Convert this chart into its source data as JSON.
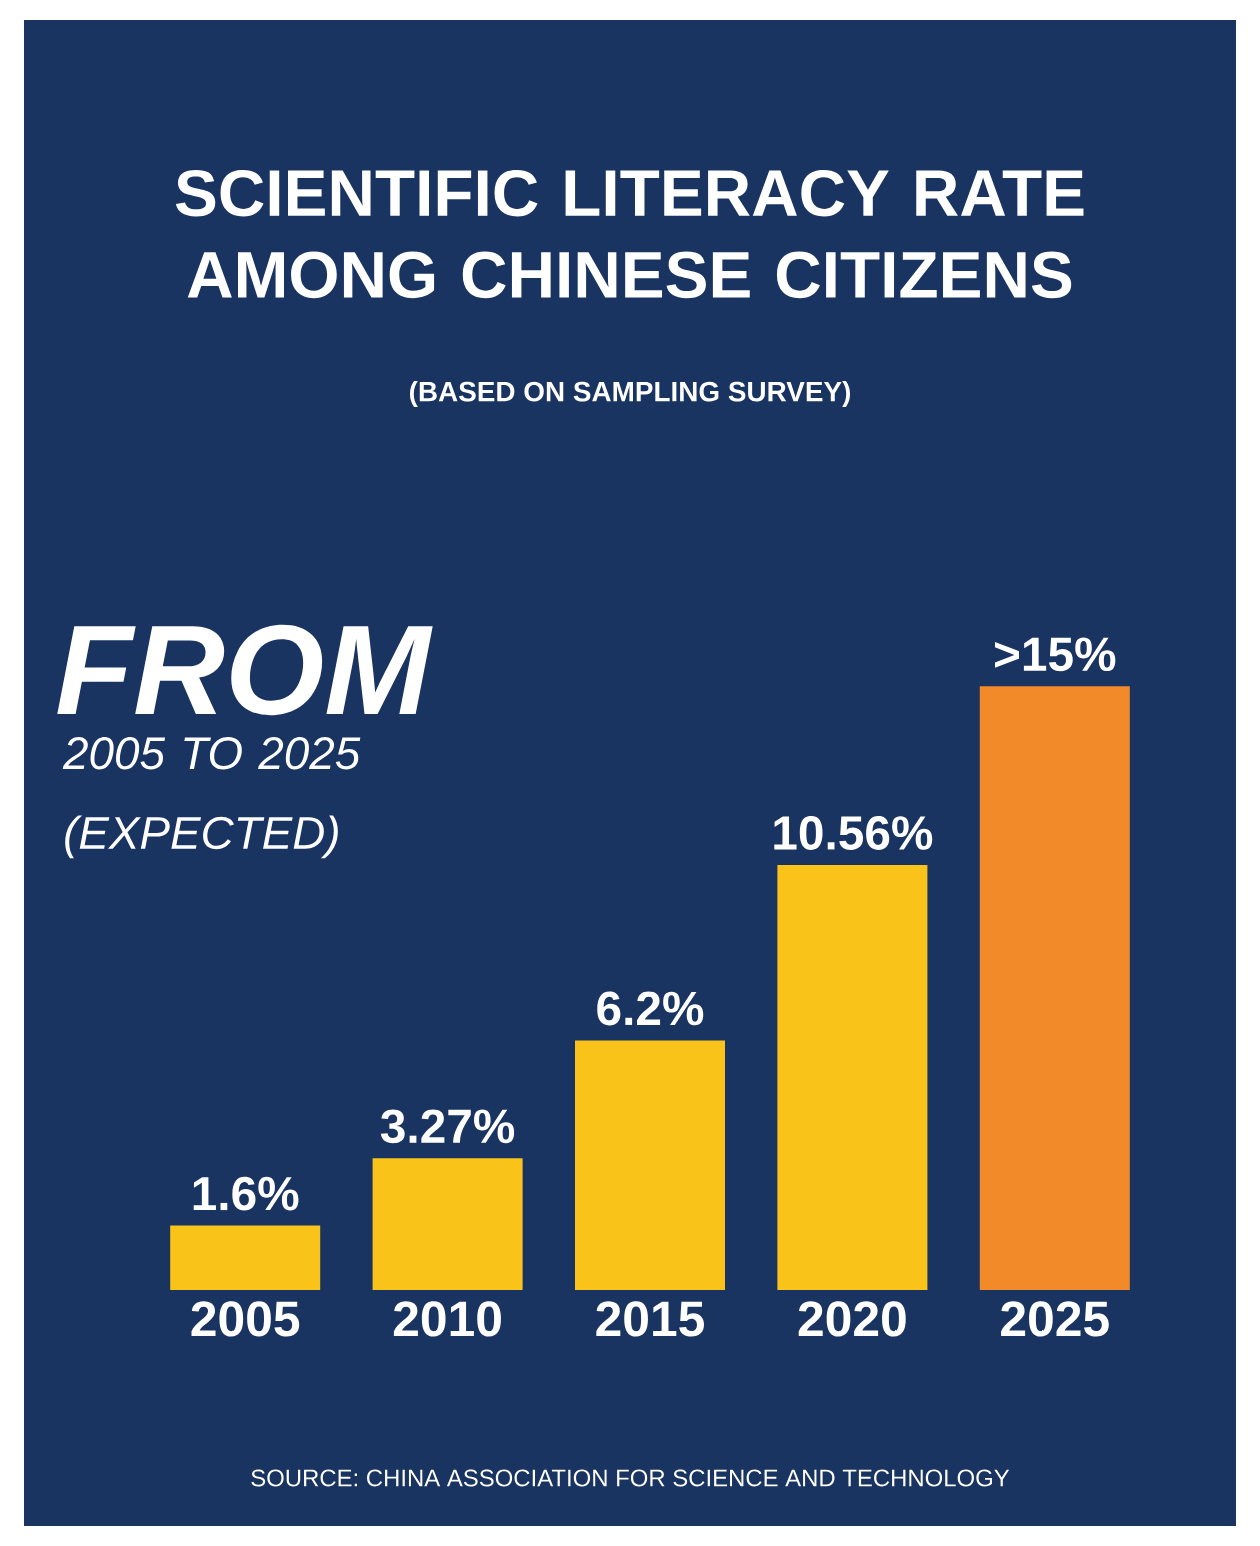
{
  "chart_data": {
    "type": "bar",
    "title": "SCIENTIFIC LITERACY RATE AMONG CHINESE CITIZENS",
    "subtitle": "(BASED ON SAMPLING SURVEY)",
    "annotations": [
      "FROM",
      "2005 TO 2025 (EXPECTED)",
      "SOURCE: CHINA ASSOCIATION FOR SCIENCE AND TECHNOLOGY"
    ],
    "categories": [
      "2005",
      "2010",
      "2015",
      "2020",
      "2025"
    ],
    "values": [
      1.6,
      3.27,
      6.2,
      10.56,
      15
    ],
    "value_labels": [
      "1.6%",
      "3.27%",
      "6.2%",
      "10.56%",
      ">15%"
    ],
    "colors": [
      "#f9c31a",
      "#f9c31a",
      "#f9c31a",
      "#f9c31a",
      "#f28a2a"
    ]
  }
}
